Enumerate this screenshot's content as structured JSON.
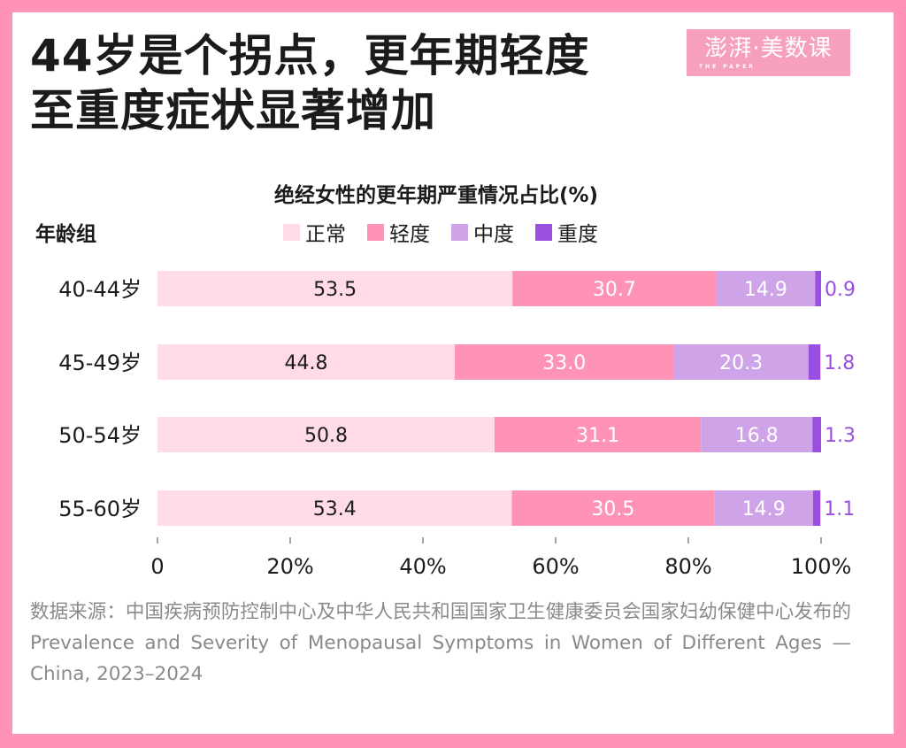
{
  "header": {
    "title_line1": "44岁是个拐点，更年期轻度",
    "title_line2": "至重度症状显著增加",
    "logo_text": "澎湃·美数课",
    "logo_subtext": "THE PAPER"
  },
  "chart_data": {
    "type": "bar",
    "orientation": "horizontal",
    "stacked": true,
    "title": "绝经女性的更年期严重情况占比(%)",
    "ylabel": "年龄组",
    "xlabel": "",
    "categories": [
      "40-44岁",
      "45-49岁",
      "50-54岁",
      "55-60岁"
    ],
    "series": [
      {
        "name": "正常",
        "color": "#ffdbe9",
        "label_color": "#1b1b1b",
        "values": [
          53.5,
          44.8,
          50.8,
          53.4
        ],
        "labels": [
          "53.5",
          "44.8",
          "50.8",
          "53.4"
        ]
      },
      {
        "name": "轻度",
        "color": "#ff93b5",
        "label_color": "#ffffff",
        "values": [
          30.7,
          33.0,
          31.1,
          30.5
        ],
        "labels": [
          "30.7",
          "33.0",
          "31.1",
          "30.5"
        ]
      },
      {
        "name": "中度",
        "color": "#cfa3e8",
        "label_color": "#ffffff",
        "values": [
          14.9,
          20.3,
          16.8,
          14.9
        ],
        "labels": [
          "14.9",
          "20.3",
          "16.8",
          "14.9"
        ]
      },
      {
        "name": "重度",
        "color": "#9a4fe0",
        "label_color": "#9a4fe0",
        "values": [
          0.9,
          1.8,
          1.3,
          1.1
        ],
        "labels": [
          "0.9",
          "1.8",
          "1.3",
          "1.1"
        ]
      }
    ],
    "xlim": [
      0,
      100
    ],
    "xticks": [
      0,
      20,
      40,
      60,
      80,
      100
    ],
    "xtick_labels": [
      "0",
      "20%",
      "40%",
      "60%",
      "80%",
      "100%"
    ],
    "grid": false,
    "legend_position": "top"
  },
  "footer": {
    "source": "数据来源：中国疾病预防控制中心及中华人民共和国国家卫生健康委员会国家妇幼保健中心发布的Prevalence and Severity of Menopausal Symptoms in Women of Different Ages — China, 2023–2024"
  },
  "colors": {
    "frame": "#ff93b5",
    "background": "#ffffff",
    "text": "#1b1b1b",
    "source_text": "#8a8a8a"
  }
}
